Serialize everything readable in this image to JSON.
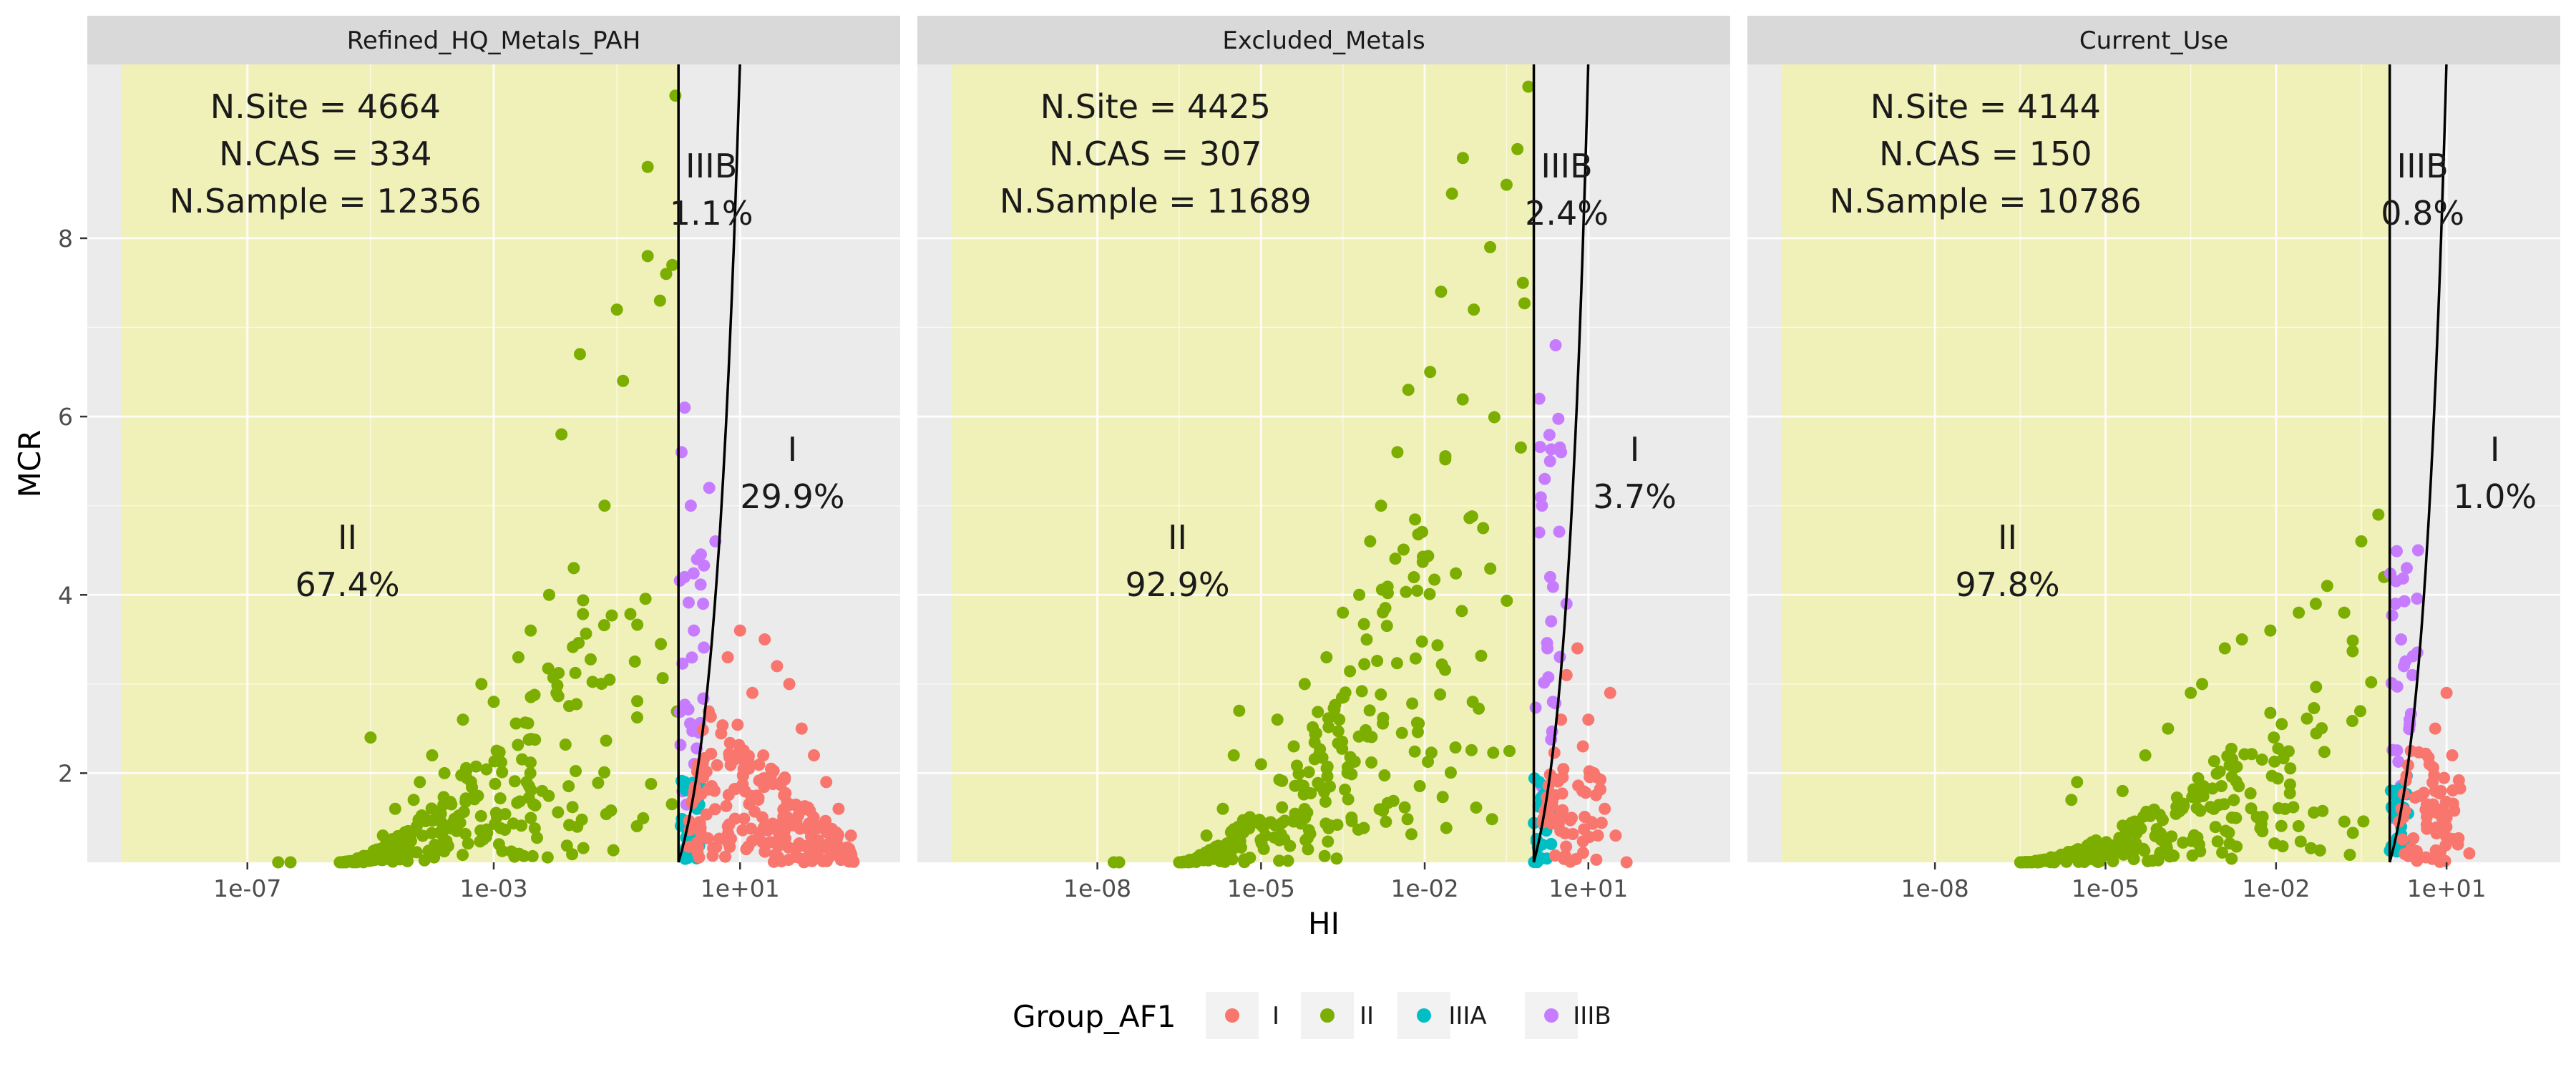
{
  "chart_data": {
    "type": "scatter",
    "xlabel": "HI",
    "ylabel": "MCR",
    "x_scale": "log10",
    "y_ticks": [
      2,
      4,
      6,
      8
    ],
    "ylim": [
      1,
      9.95
    ],
    "legend": {
      "title": "Group_AF1",
      "position": "bottom",
      "entries": [
        {
          "label": "I",
          "color": "#F8766D"
        },
        {
          "label": "II",
          "color": "#7CAE00"
        },
        {
          "label": "IIIA",
          "color": "#00BFC4"
        },
        {
          "label": "IIIB",
          "color": "#C77CFF"
        }
      ]
    },
    "shaded_region": {
      "description": "Group II region HI < 1",
      "color": "#F0F0B4"
    },
    "boundaries": [
      "HI = 1",
      "MCR = HI"
    ],
    "panels": [
      {
        "title": "Refined_HQ_Metals_PAH",
        "xlim_log10": [
          -9.6,
          3.6
        ],
        "x_ticks": [
          {
            "v": -7,
            "label": "1e-07"
          },
          {
            "v": -3,
            "label": "1e-03"
          },
          {
            "v": 1,
            "label": "1e+01"
          }
        ],
        "stats": [
          "N.Site = 4664",
          "N.CAS = 334",
          "N.Sample = 12356"
        ],
        "regions": [
          {
            "name": "II",
            "pct": "67.4%"
          },
          {
            "name": "IIIB",
            "pct": "1.1%"
          },
          {
            "name": "I",
            "pct": "29.9%"
          }
        ],
        "points": {
          "II": [
            [
              -6.5,
              1
            ],
            [
              -6.3,
              1
            ],
            [
              -5.5,
              1
            ],
            [
              -5.4,
              1
            ],
            [
              -4.8,
              1.3
            ],
            [
              -4.6,
              1.6
            ],
            [
              -4.3,
              1.7
            ],
            [
              -5.0,
              2.4
            ],
            [
              -4.2,
              1.9
            ],
            [
              -4.0,
              2.2
            ],
            [
              -3.8,
              2.0
            ],
            [
              -3.5,
              2.6
            ],
            [
              -3.2,
              3.0
            ],
            [
              -3.0,
              2.8
            ],
            [
              -2.6,
              3.3
            ],
            [
              -2.4,
              3.6
            ],
            [
              -2.1,
              4.0
            ],
            [
              -1.7,
              4.3
            ],
            [
              -1.9,
              5.8
            ],
            [
              -1.6,
              6.7
            ],
            [
              -1.2,
              5.0
            ],
            [
              -1.0,
              7.2
            ],
            [
              -0.9,
              6.4
            ],
            [
              -0.5,
              7.8
            ],
            [
              -0.5,
              8.8
            ],
            [
              -0.3,
              7.3
            ],
            [
              -0.2,
              7.6
            ],
            [
              -0.1,
              7.7
            ],
            [
              -0.05,
              9.6
            ]
          ],
          "IIIA": [
            [
              0.1,
              1.9
            ],
            [
              0.2,
              1.4
            ],
            [
              0.15,
              1.2
            ],
            [
              0.3,
              1.6
            ]
          ],
          "IIIB": [
            [
              0.1,
              4.2
            ],
            [
              0.2,
              5.0
            ],
            [
              0.3,
              4.4
            ],
            [
              0.4,
              3.9
            ],
            [
              0.5,
              5.2
            ],
            [
              0.6,
              4.6
            ],
            [
              0.1,
              6.1
            ],
            [
              0.25,
              3.6
            ],
            [
              0.05,
              5.6
            ]
          ],
          "I": [
            [
              1.4,
              3.5
            ],
            [
              1.6,
              3.2
            ],
            [
              1.8,
              3.0
            ],
            [
              2.0,
              2.5
            ],
            [
              2.2,
              2.2
            ],
            [
              2.4,
              1.9
            ],
            [
              2.6,
              1.6
            ],
            [
              2.8,
              1.3
            ],
            [
              1.2,
              2.9
            ],
            [
              1.0,
              3.6
            ],
            [
              0.8,
              3.3
            ]
          ]
        }
      },
      {
        "title": "Excluded_Metals",
        "xlim_log10": [
          -11.3,
          3.6
        ],
        "x_ticks": [
          {
            "v": -8,
            "label": "1e-08"
          },
          {
            "v": -5,
            "label": "1e-05"
          },
          {
            "v": -2,
            "label": "1e-02"
          },
          {
            "v": 1,
            "label": "1e+01"
          }
        ],
        "stats": [
          "N.Site = 4425",
          "N.CAS = 307",
          "N.Sample = 11689"
        ],
        "regions": [
          {
            "name": "II",
            "pct": "92.9%"
          },
          {
            "name": "IIIB",
            "pct": "2.4%"
          },
          {
            "name": "I",
            "pct": "3.7%"
          }
        ],
        "points": {
          "II": [
            [
              -7.7,
              1
            ],
            [
              -7.6,
              1
            ],
            [
              -6.5,
              1
            ],
            [
              -6.0,
              1.3
            ],
            [
              -5.7,
              1.6
            ],
            [
              -5.5,
              2.2
            ],
            [
              -5.4,
              2.7
            ],
            [
              -5.0,
              2.1
            ],
            [
              -4.7,
              2.6
            ],
            [
              -4.4,
              2.3
            ],
            [
              -4.2,
              3.0
            ],
            [
              -3.8,
              3.3
            ],
            [
              -3.5,
              3.8
            ],
            [
              -3.2,
              4.0
            ],
            [
              -3.0,
              4.6
            ],
            [
              -2.8,
              5.0
            ],
            [
              -2.5,
              5.6
            ],
            [
              -2.3,
              6.3
            ],
            [
              -1.9,
              6.5
            ],
            [
              -1.7,
              7.4
            ],
            [
              -1.5,
              8.5
            ],
            [
              -1.3,
              8.9
            ],
            [
              -1.1,
              7.2
            ],
            [
              -0.8,
              7.9
            ],
            [
              -0.5,
              8.6
            ],
            [
              -0.3,
              9.0
            ],
            [
              -0.1,
              9.7
            ],
            [
              -0.2,
              7.5
            ]
          ],
          "IIIA": [
            [
              0.1,
              1.9
            ],
            [
              0.2,
              1.4
            ],
            [
              0.15,
              1.2
            ],
            [
              0.3,
              1.7
            ]
          ],
          "IIIB": [
            [
              0.1,
              4.7
            ],
            [
              0.2,
              5.3
            ],
            [
              0.3,
              4.2
            ],
            [
              0.4,
              6.8
            ],
            [
              0.5,
              5.6
            ],
            [
              0.6,
              3.9
            ],
            [
              0.1,
              6.2
            ],
            [
              0.25,
              3.4
            ],
            [
              0.15,
              5.0
            ],
            [
              0.35,
              2.8
            ]
          ],
          "I": [
            [
              1.7,
              1.0
            ],
            [
              1.5,
              1.3
            ],
            [
              1.3,
              1.6
            ],
            [
              1.1,
              2.0
            ],
            [
              0.9,
              2.3
            ],
            [
              0.8,
              3.4
            ],
            [
              0.6,
              3.1
            ],
            [
              0.5,
              2.6
            ],
            [
              1.4,
              2.9
            ],
            [
              1.0,
              2.6
            ]
          ]
        }
      },
      {
        "title": "Current_Use",
        "xlim_log10": [
          -11.3,
          3.0
        ],
        "x_ticks": [
          {
            "v": -8,
            "label": "1e-08"
          },
          {
            "v": -5,
            "label": "1e-05"
          },
          {
            "v": -2,
            "label": "1e-02"
          },
          {
            "v": 1,
            "label": "1e+01"
          }
        ],
        "stats": [
          "N.Site = 4144",
          "N.CAS = 150",
          "N.Sample = 10786"
        ],
        "regions": [
          {
            "name": "II",
            "pct": "97.8%"
          },
          {
            "name": "IIIB",
            "pct": "0.8%"
          },
          {
            "name": "I",
            "pct": "1.0%"
          }
        ],
        "points": {
          "II": [
            [
              -6.5,
              1
            ],
            [
              -6.3,
              1
            ],
            [
              -5.9,
              1
            ],
            [
              -5.6,
              1.7
            ],
            [
              -5.5,
              1.9
            ],
            [
              -4.7,
              1.8
            ],
            [
              -4.3,
              2.2
            ],
            [
              -3.9,
              2.5
            ],
            [
              -3.5,
              2.9
            ],
            [
              -3.3,
              3.0
            ],
            [
              -2.9,
              3.4
            ],
            [
              -2.6,
              3.5
            ],
            [
              -2.1,
              3.6
            ],
            [
              -1.6,
              3.8
            ],
            [
              -1.3,
              3.9
            ],
            [
              -1.1,
              4.1
            ],
            [
              -0.8,
              3.8
            ],
            [
              -0.5,
              4.6
            ],
            [
              -0.2,
              4.9
            ],
            [
              -0.1,
              4.2
            ]
          ],
          "IIIA": [
            [
              0.1,
              1.8
            ],
            [
              0.2,
              1.4
            ],
            [
              0.15,
              1.2
            ]
          ],
          "IIIB": [
            [
              0.1,
              3.9
            ],
            [
              0.2,
              3.5
            ],
            [
              0.3,
              4.3
            ],
            [
              0.4,
              3.1
            ],
            [
              0.5,
              4.5
            ],
            [
              0.35,
              2.6
            ],
            [
              0.25,
              3.2
            ]
          ],
          "I": [
            [
              1.2,
              1.2
            ],
            [
              1.0,
              1.5
            ],
            [
              0.9,
              1.8
            ],
            [
              1.1,
              2.2
            ],
            [
              0.8,
              2.5
            ],
            [
              1.0,
              2.9
            ],
            [
              0.7,
              2.1
            ],
            [
              1.4,
              1.1
            ]
          ]
        }
      }
    ]
  }
}
